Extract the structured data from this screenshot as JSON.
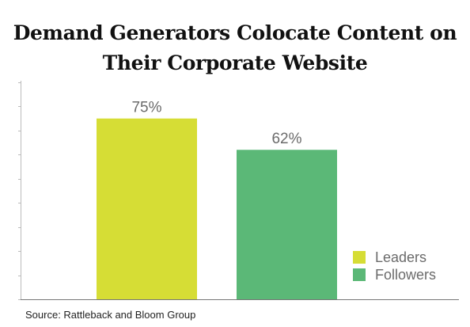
{
  "title": {
    "line1": "Demand Generators Colocate Content on",
    "line2": "Their Corporate Website"
  },
  "chart_data": {
    "type": "bar",
    "categories": [
      "Leaders",
      "Followers"
    ],
    "values": [
      75,
      62
    ],
    "value_labels": [
      "75%",
      "62%"
    ],
    "ylim": [
      0,
      90
    ],
    "grid": false,
    "legend_position": "bottom-right",
    "colors": [
      "#d6dd35",
      "#5bb877"
    ]
  },
  "legend": [
    {
      "label": "Leaders",
      "color": "#d6dd35"
    },
    {
      "label": "Followers",
      "color": "#5bb877"
    }
  ],
  "source": "Source: Rattleback and Bloom Group"
}
